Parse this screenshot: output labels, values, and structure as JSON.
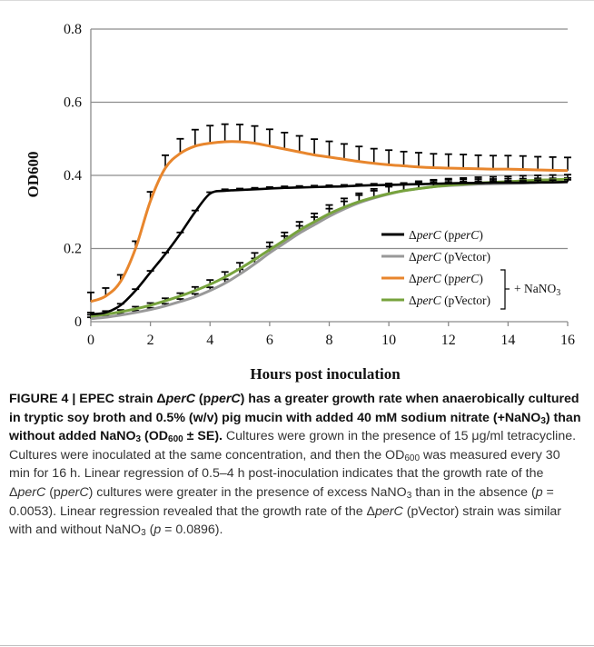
{
  "chart_data": {
    "type": "line",
    "title": "",
    "xlabel": "Hours post inoculation",
    "ylabel": "OD600",
    "xlim": [
      0,
      16
    ],
    "ylim": [
      0,
      0.8
    ],
    "xticks": [
      "0",
      "2",
      "4",
      "6",
      "8",
      "10",
      "12",
      "14",
      "16"
    ],
    "yticks": [
      "0",
      "0.2",
      "0.4",
      "0.6",
      "0.8"
    ],
    "grid": "horizontal",
    "legend_placement": "lower-right",
    "legend_group_label": "+ NaNO",
    "legend_group_label_sub": "3",
    "x": [
      0,
      0.5,
      1,
      1.5,
      2,
      2.5,
      3,
      3.5,
      4,
      4.5,
      5,
      5.5,
      6,
      6.5,
      7,
      7.5,
      8,
      8.5,
      9,
      9.5,
      10,
      10.5,
      11,
      11.5,
      12,
      12.5,
      13,
      13.5,
      14,
      14.5,
      15,
      15.5,
      16
    ],
    "series": [
      {
        "name": "ΔperC (pperC)",
        "color": "#000000",
        "values": [
          0.02,
          0.025,
          0.045,
          0.085,
          0.135,
          0.185,
          0.24,
          0.3,
          0.35,
          0.358,
          0.36,
          0.362,
          0.364,
          0.366,
          0.367,
          0.368,
          0.369,
          0.37,
          0.372,
          0.373,
          0.374,
          0.375,
          0.376,
          0.377,
          0.378,
          0.379,
          0.379,
          0.38,
          0.38,
          0.38,
          0.381,
          0.381,
          0.382
        ],
        "errors": [
          0.005,
          0.004,
          0.004,
          0.004,
          0.004,
          0.004,
          0.004,
          0.004,
          0.004,
          0.004,
          0.004,
          0.004,
          0.004,
          0.004,
          0.004,
          0.004,
          0.004,
          0.004,
          0.004,
          0.004,
          0.004,
          0.004,
          0.004,
          0.004,
          0.004,
          0.004,
          0.005,
          0.005,
          0.005,
          0.005,
          0.006,
          0.006,
          0.006
        ]
      },
      {
        "name": "ΔperC (pVector)",
        "color": "#999999",
        "values": [
          0.008,
          0.012,
          0.018,
          0.025,
          0.033,
          0.043,
          0.055,
          0.068,
          0.085,
          0.105,
          0.13,
          0.158,
          0.188,
          0.215,
          0.242,
          0.265,
          0.288,
          0.308,
          0.325,
          0.338,
          0.349,
          0.358,
          0.364,
          0.369,
          0.372,
          0.374,
          0.376,
          0.377,
          0.378,
          0.379,
          0.38,
          0.381,
          0.382
        ],
        "errors": [
          0.004,
          0.004,
          0.004,
          0.005,
          0.005,
          0.006,
          0.007,
          0.008,
          0.009,
          0.011,
          0.013,
          0.015,
          0.017,
          0.019,
          0.02,
          0.021,
          0.021,
          0.021,
          0.021,
          0.02,
          0.02,
          0.019,
          0.018,
          0.017,
          0.016,
          0.015,
          0.014,
          0.013,
          0.013,
          0.012,
          0.012,
          0.011,
          0.011
        ]
      },
      {
        "name": "ΔperC (pperC)",
        "color": "#E8862D",
        "values": [
          0.055,
          0.07,
          0.11,
          0.2,
          0.33,
          0.42,
          0.46,
          0.48,
          0.488,
          0.492,
          0.492,
          0.488,
          0.48,
          0.472,
          0.464,
          0.456,
          0.45,
          0.444,
          0.438,
          0.433,
          0.429,
          0.426,
          0.423,
          0.421,
          0.42,
          0.419,
          0.418,
          0.417,
          0.417,
          0.416,
          0.415,
          0.414,
          0.413
        ],
        "errors": [
          0.025,
          0.022,
          0.018,
          0.02,
          0.025,
          0.035,
          0.04,
          0.045,
          0.048,
          0.048,
          0.047,
          0.047,
          0.046,
          0.045,
          0.044,
          0.043,
          0.043,
          0.042,
          0.041,
          0.04,
          0.04,
          0.039,
          0.039,
          0.038,
          0.038,
          0.038,
          0.037,
          0.037,
          0.037,
          0.037,
          0.036,
          0.036,
          0.036
        ]
      },
      {
        "name": "ΔperC (pVector)",
        "color": "#77A33D",
        "values": [
          0.015,
          0.02,
          0.027,
          0.035,
          0.045,
          0.057,
          0.07,
          0.085,
          0.102,
          0.122,
          0.145,
          0.17,
          0.197,
          0.223,
          0.25,
          0.273,
          0.295,
          0.313,
          0.328,
          0.34,
          0.35,
          0.358,
          0.364,
          0.369,
          0.373,
          0.376,
          0.379,
          0.381,
          0.383,
          0.385,
          0.387,
          0.388,
          0.39
        ],
        "errors": [
          0.004,
          0.004,
          0.005,
          0.006,
          0.006,
          0.007,
          0.008,
          0.01,
          0.012,
          0.014,
          0.016,
          0.018,
          0.02,
          0.021,
          0.023,
          0.023,
          0.024,
          0.024,
          0.023,
          0.023,
          0.022,
          0.021,
          0.02,
          0.019,
          0.018,
          0.017,
          0.016,
          0.015,
          0.014,
          0.014,
          0.013,
          0.013,
          0.012
        ]
      }
    ]
  },
  "caption": {
    "part1": "FIGURE 4 | EPEC strain Δ",
    "part2": "perC",
    "part3": " (p",
    "part4": "perC",
    "part5": ") has a greater growth rate when anaerobically cultured in tryptic soy broth and 0.5% (w/v) pig mucin with added 40 mM sodium nitrate (+NaNO",
    "part6": "3",
    "part7": ") than without added NaNO",
    "part8": "3",
    "part9": " (OD",
    "part10": "600",
    "part11": " ± SE).",
    "body1": " Cultures were grown in the presence of 15 μg/ml tetracycline. Cultures were inoculated at the same concentration, and then the OD",
    "body2": "600",
    "body3": " was measured every 30 min for 16 h. Linear regression of 0.5–4 h post-inoculation indicates that the growth rate of the Δ",
    "body4": "perC",
    "body5": " (p",
    "body6": "perC",
    "body7": ") cultures were greater in the presence of excess NaNO",
    "body8": "3",
    "body9": " than in the absence (",
    "body10": "p",
    "body11": " = 0.0053). Linear regression revealed that the growth rate of the Δ",
    "body12": "perC",
    "body13": " (pVector) strain was similar with and without NaNO",
    "body14": "3",
    "body15": " (",
    "body16": "p",
    "body17": " = 0.0896)."
  }
}
